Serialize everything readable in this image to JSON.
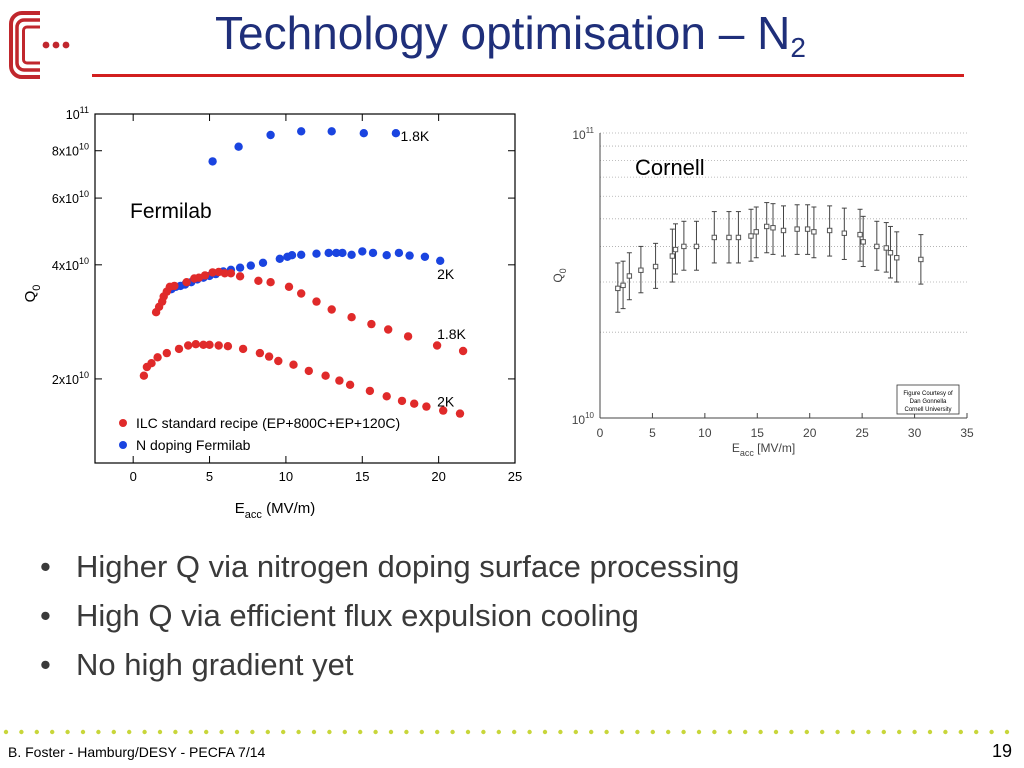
{
  "slide": {
    "title_main": "Technology optimisation – N",
    "title_sub": "2",
    "bullets": [
      "Higher Q via nitrogen doping surface processing",
      "High Q via efficient flux expulsion cooling",
      "No high gradient yet"
    ],
    "footer_left": "B. Foster - Hamburg/DESY -  PECFA 7/14",
    "page_number": "19",
    "colors": {
      "title": "#1f2f7a",
      "rule": "#d21f1f",
      "dots": "#c8d63a",
      "logo": "#c0272d"
    }
  },
  "chart_data": [
    {
      "type": "scatter",
      "panel_label": "Fermilab",
      "xlabel_main": "E",
      "xlabel_sub": "acc",
      "xlabel_rest": " (MV/m)",
      "ylabel_main": "Q",
      "ylabel_sub": "0",
      "xlim": [
        -2.5,
        25
      ],
      "ylim": [
        12000000000,
        100000000000
      ],
      "yscale": "log",
      "xticks": [
        "0",
        "5",
        "10",
        "15",
        "20",
        "25"
      ],
      "yticks": [
        {
          "value": 20000000000,
          "mant": "2x10",
          "exp": "10"
        },
        {
          "value": 40000000000,
          "mant": "4x10",
          "exp": "10"
        },
        {
          "value": 60000000000,
          "mant": "6x10",
          "exp": "10"
        },
        {
          "value": 80000000000,
          "mant": "8x10",
          "exp": "10"
        },
        {
          "value": 100000000000,
          "mant": "10",
          "exp": "11"
        }
      ],
      "legend": {
        "placement": "bottom-left",
        "entries": [
          {
            "label": "ILC standard recipe (EP+800C+EP+120C)",
            "color": "#e02a2a"
          },
          {
            "label": "N doping Fermilab",
            "color": "#1a44e0"
          }
        ]
      },
      "annotations": [
        {
          "text": "1.8K",
          "x": 17.5,
          "y": 85000000000
        },
        {
          "text": "2K",
          "x": 19.9,
          "y": 36700000000
        },
        {
          "text": "1.8K",
          "x": 19.9,
          "y": 25500000000
        },
        {
          "text": "2K",
          "x": 19.9,
          "y": 16900000000
        }
      ],
      "series": [
        {
          "name": "N doping Fermilab",
          "color": "#1a44e0",
          "points": [
            [
              5.2,
              75000000000
            ],
            [
              6.9,
              82000000000
            ],
            [
              9.0,
              88000000000
            ],
            [
              11.0,
              90000000000
            ],
            [
              13.0,
              90000000000
            ],
            [
              15.1,
              89000000000
            ],
            [
              17.2,
              89000000000
            ],
            [
              2.5,
              34500000000
            ],
            [
              2.8,
              35000000000
            ],
            [
              3.1,
              35200000000
            ],
            [
              3.4,
              35500000000
            ],
            [
              3.8,
              36000000000
            ],
            [
              4.2,
              36600000000
            ],
            [
              4.6,
              37000000000
            ],
            [
              5.0,
              37400000000
            ],
            [
              5.4,
              37800000000
            ],
            [
              5.9,
              38400000000
            ],
            [
              6.4,
              38800000000
            ],
            [
              7.0,
              39300000000
            ],
            [
              7.7,
              39800000000
            ],
            [
              8.5,
              40500000000
            ],
            [
              9.6,
              41500000000
            ],
            [
              10.1,
              42000000000
            ],
            [
              10.4,
              42400000000
            ],
            [
              11.0,
              42500000000
            ],
            [
              12.0,
              42800000000
            ],
            [
              12.8,
              43000000000
            ],
            [
              13.3,
              43000000000
            ],
            [
              13.7,
              43000000000
            ],
            [
              14.3,
              42500000000
            ],
            [
              15.0,
              43400000000
            ],
            [
              15.7,
              43000000000
            ],
            [
              16.6,
              42400000000
            ],
            [
              17.4,
              43000000000
            ],
            [
              18.1,
              42300000000
            ],
            [
              19.1,
              42000000000
            ],
            [
              20.1,
              41000000000
            ]
          ]
        },
        {
          "name": "ILC standard recipe (EP+800C+EP+120C) 2K",
          "color": "#e02a2a",
          "points": [
            [
              1.5,
              30000000000
            ],
            [
              1.7,
              31000000000
            ],
            [
              1.9,
              32000000000
            ],
            [
              2.0,
              33000000000
            ],
            [
              2.2,
              34000000000
            ],
            [
              2.4,
              35000000000
            ],
            [
              2.7,
              35200000000
            ],
            [
              3.5,
              36000000000
            ],
            [
              4.0,
              36800000000
            ],
            [
              4.3,
              37000000000
            ],
            [
              4.7,
              37500000000
            ],
            [
              5.2,
              38200000000
            ],
            [
              5.6,
              38300000000
            ],
            [
              6.0,
              38000000000
            ],
            [
              6.4,
              38000000000
            ],
            [
              7.0,
              37300000000
            ],
            [
              8.2,
              36300000000
            ],
            [
              9.0,
              36000000000
            ],
            [
              10.2,
              35000000000
            ],
            [
              11.0,
              33600000000
            ],
            [
              12.0,
              32000000000
            ],
            [
              13.0,
              30500000000
            ],
            [
              14.3,
              29100000000
            ],
            [
              15.6,
              27900000000
            ],
            [
              16.7,
              27000000000
            ],
            [
              18.0,
              25900000000
            ],
            [
              19.9,
              24500000000
            ],
            [
              21.6,
              23700000000
            ]
          ]
        },
        {
          "name": "ILC standard recipe (EP+800C+EP+120C) 1.8K",
          "color": "#e02a2a",
          "points": [
            [
              0.7,
              20400000000
            ],
            [
              0.9,
              21500000000
            ],
            [
              1.2,
              22000000000
            ],
            [
              1.6,
              22800000000
            ],
            [
              2.2,
              23400000000
            ],
            [
              3.0,
              24000000000
            ],
            [
              3.6,
              24500000000
            ],
            [
              4.1,
              24700000000
            ],
            [
              4.6,
              24600000000
            ],
            [
              5.0,
              24600000000
            ],
            [
              5.6,
              24500000000
            ],
            [
              6.2,
              24400000000
            ],
            [
              7.2,
              24000000000
            ],
            [
              8.3,
              23400000000
            ],
            [
              8.9,
              22900000000
            ],
            [
              9.5,
              22300000000
            ],
            [
              10.5,
              21800000000
            ],
            [
              11.5,
              21000000000
            ],
            [
              12.6,
              20400000000
            ],
            [
              13.5,
              19800000000
            ],
            [
              14.2,
              19300000000
            ],
            [
              15.5,
              18600000000
            ],
            [
              16.6,
              18000000000
            ],
            [
              17.6,
              17500000000
            ],
            [
              18.4,
              17200000000
            ],
            [
              19.2,
              16900000000
            ],
            [
              20.3,
              16500000000
            ],
            [
              21.4,
              16200000000
            ]
          ]
        }
      ]
    },
    {
      "type": "scatter",
      "panel_label": "Cornell",
      "credit": [
        "Figure Courtesy of",
        "Dan Gonnella",
        "Cornell University"
      ],
      "xlabel_main": "E",
      "xlabel_sub": "acc",
      "xlabel_rest": " [MV/m]",
      "ylabel_main": "Q",
      "ylabel_sub": "0",
      "xlim": [
        0,
        35
      ],
      "ylim": [
        10000000000,
        100000000000
      ],
      "yscale": "log",
      "grid": true,
      "xticks": [
        "0",
        "5",
        "10",
        "15",
        "20",
        "25",
        "30",
        "35"
      ],
      "yticks": [
        {
          "value": 10000000000,
          "mant": "10",
          "exp": "10"
        },
        {
          "value": 100000000000,
          "mant": "10",
          "exp": "11"
        }
      ],
      "series": [
        {
          "name": "",
          "color": "#555555",
          "points": [
            {
              "x": 1.7,
              "y": 28500000000,
              "lo": 23500000000,
              "hi": 35000000000
            },
            {
              "x": 2.2,
              "y": 29200000000,
              "lo": 24200000000,
              "hi": 35500000000
            },
            {
              "x": 2.8,
              "y": 31500000000,
              "lo": 26000000000,
              "hi": 38000000000
            },
            {
              "x": 3.9,
              "y": 33000000000,
              "lo": 27500000000,
              "hi": 40000000000
            },
            {
              "x": 5.3,
              "y": 34000000000,
              "lo": 28500000000,
              "hi": 41000000000
            },
            {
              "x": 6.9,
              "y": 37000000000,
              "lo": 30000000000,
              "hi": 46000000000
            },
            {
              "x": 7.2,
              "y": 39000000000,
              "lo": 32000000000,
              "hi": 48000000000
            },
            {
              "x": 8.0,
              "y": 40000000000,
              "lo": 33000000000,
              "hi": 49000000000
            },
            {
              "x": 9.2,
              "y": 40000000000,
              "lo": 33000000000,
              "hi": 49000000000
            },
            {
              "x": 10.9,
              "y": 43000000000,
              "lo": 35000000000,
              "hi": 53000000000
            },
            {
              "x": 12.3,
              "y": 43000000000,
              "lo": 35000000000,
              "hi": 53000000000
            },
            {
              "x": 13.2,
              "y": 43000000000,
              "lo": 35000000000,
              "hi": 53000000000
            },
            {
              "x": 14.4,
              "y": 43500000000,
              "lo": 35500000000,
              "hi": 54000000000
            },
            {
              "x": 14.9,
              "y": 45000000000,
              "lo": 36500000000,
              "hi": 55000000000
            },
            {
              "x": 15.9,
              "y": 47000000000,
              "lo": 38000000000,
              "hi": 57000000000
            },
            {
              "x": 16.5,
              "y": 46500000000,
              "lo": 37500000000,
              "hi": 56500000000
            },
            {
              "x": 17.5,
              "y": 45500000000,
              "lo": 37000000000,
              "hi": 55500000000
            },
            {
              "x": 18.8,
              "y": 46000000000,
              "lo": 37500000000,
              "hi": 56000000000
            },
            {
              "x": 19.8,
              "y": 46000000000,
              "lo": 37500000000,
              "hi": 56000000000
            },
            {
              "x": 20.4,
              "y": 45000000000,
              "lo": 36500000000,
              "hi": 55000000000
            },
            {
              "x": 21.9,
              "y": 45500000000,
              "lo": 37000000000,
              "hi": 55500000000
            },
            {
              "x": 23.3,
              "y": 44500000000,
              "lo": 36000000000,
              "hi": 54500000000
            },
            {
              "x": 24.8,
              "y": 44000000000,
              "lo": 35500000000,
              "hi": 54000000000
            },
            {
              "x": 25.1,
              "y": 41500000000,
              "lo": 34000000000,
              "hi": 51000000000
            },
            {
              "x": 26.4,
              "y": 40000000000,
              "lo": 33000000000,
              "hi": 49000000000
            },
            {
              "x": 27.3,
              "y": 39500000000,
              "lo": 32500000000,
              "hi": 48500000000
            },
            {
              "x": 27.7,
              "y": 38000000000,
              "lo": 31000000000,
              "hi": 47000000000
            },
            {
              "x": 28.3,
              "y": 36500000000,
              "lo": 30000000000,
              "hi": 45000000000
            },
            {
              "x": 30.6,
              "y": 36000000000,
              "lo": 29500000000,
              "hi": 44000000000
            }
          ]
        }
      ]
    }
  ]
}
